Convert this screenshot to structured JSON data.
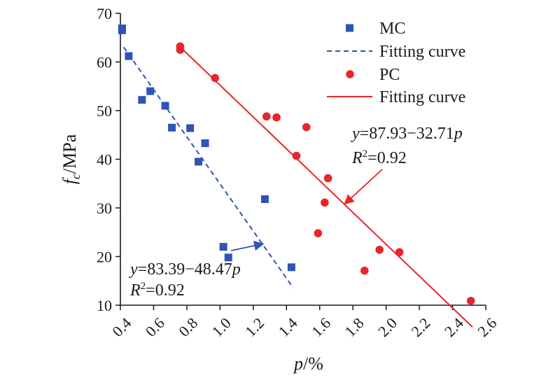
{
  "chart_data": {
    "type": "scatter",
    "title": "",
    "xlabel": {
      "main": "p",
      "unit": "/%"
    },
    "ylabel": {
      "main": "f",
      "sub": "c",
      "unit": "/MPa"
    },
    "xlim": [
      0.4,
      2.6
    ],
    "ylim": [
      10,
      70
    ],
    "xticks": [
      "0.4",
      "0.6",
      "0.8",
      "1.0",
      "1.2",
      "1.4",
      "1.6",
      "1.8",
      "2.0",
      "2.2",
      "2.4",
      "2.6"
    ],
    "yticks": [
      "10",
      "20",
      "30",
      "40",
      "50",
      "60",
      "70"
    ],
    "grid": false,
    "legend_position": "top-right",
    "series": [
      {
        "name": "MC",
        "marker": "square",
        "color": "#2f54b5",
        "x": [
          0.41,
          0.41,
          0.45,
          0.53,
          0.58,
          0.67,
          0.71,
          0.82,
          0.87,
          0.91,
          1.02,
          1.05,
          1.27,
          1.43
        ],
        "y": [
          66.9,
          66.5,
          61.2,
          52.2,
          54.0,
          51.0,
          46.5,
          46.4,
          39.5,
          43.3,
          22.0,
          19.8,
          31.8,
          17.8
        ]
      },
      {
        "name": "PC",
        "marker": "circle",
        "color": "#e8262b",
        "x": [
          0.76,
          0.76,
          0.97,
          1.28,
          1.34,
          1.46,
          1.52,
          1.59,
          1.63,
          1.65,
          1.87,
          1.96,
          2.08,
          2.51
        ],
        "y": [
          63.2,
          62.5,
          56.7,
          48.8,
          48.6,
          40.7,
          46.6,
          24.8,
          31.1,
          36.1,
          17.1,
          21.4,
          20.9,
          10.9
        ]
      }
    ],
    "fits": [
      {
        "name": "Fitting curve",
        "for": "MC",
        "style": "dashed",
        "color": "#2f54b5",
        "intercept": 83.39,
        "slope": -48.47,
        "x_range": [
          0.42,
          1.44
        ],
        "equation": "y=83.39−48.47p",
        "r2": "R²=0.92"
      },
      {
        "name": "Fitting curve",
        "for": "PC",
        "style": "solid",
        "color": "#e8262b",
        "intercept": 87.93,
        "slope": -32.71,
        "x_range": [
          0.76,
          2.52
        ],
        "equation": "y=87.93−32.71p",
        "r2": "R²=0.92"
      }
    ],
    "legend": [
      "MC",
      "Fitting curve",
      "PC",
      "Fitting curve"
    ]
  }
}
